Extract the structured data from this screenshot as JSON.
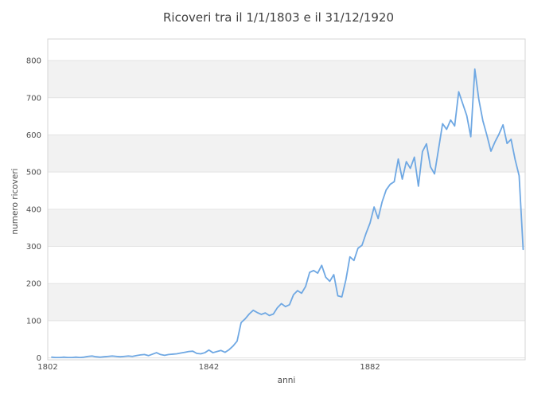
{
  "chart_data": {
    "type": "line",
    "title": "Ricoveri tra il 1/1/1803 e il 31/12/1920",
    "xlabel": "anni",
    "ylabel": "numero ricoveri",
    "x_start": 1803,
    "x_end": 1920,
    "x_step": 1,
    "series": [
      {
        "name": "ricoveri",
        "values": [
          2,
          1,
          1,
          2,
          1,
          1,
          2,
          1,
          2,
          4,
          5,
          3,
          2,
          3,
          4,
          5,
          4,
          3,
          4,
          5,
          4,
          6,
          8,
          9,
          6,
          10,
          14,
          9,
          7,
          9,
          10,
          11,
          13,
          15,
          17,
          18,
          12,
          11,
          14,
          21,
          14,
          17,
          20,
          15,
          22,
          32,
          45,
          95,
          105,
          118,
          128,
          122,
          117,
          121,
          114,
          118,
          135,
          146,
          138,
          143,
          170,
          181,
          174,
          192,
          230,
          235,
          228,
          249,
          217,
          206,
          224,
          167,
          164,
          210,
          272,
          262,
          295,
          303,
          335,
          363,
          406,
          375,
          420,
          452,
          467,
          474,
          535,
          481,
          528,
          510,
          540,
          462,
          555,
          576,
          514,
          495,
          562,
          630,
          615,
          640,
          624,
          716,
          684,
          652,
          595,
          777,
          695,
          638,
          599,
          556,
          581,
          602,
          627,
          577,
          588,
          534,
          490,
          292
        ]
      }
    ],
    "x_ticks": [
      1802,
      1842,
      1882
    ],
    "y_ticks": [
      0,
      100,
      200,
      300,
      400,
      500,
      600,
      700,
      800
    ],
    "xlim": [
      1802,
      1920.5
    ],
    "ylim": [
      0,
      858
    ],
    "grid": "horizontal",
    "alternating_bands": [
      [
        100,
        200
      ],
      [
        300,
        400
      ],
      [
        500,
        600
      ],
      [
        700,
        800
      ]
    ],
    "legend": "none",
    "colors": {
      "line": "#6fa8e3",
      "band": "#f2f2f2",
      "grid": "#e3e3e3",
      "border": "#d6d6d6",
      "title_text": "#3f3f3f",
      "tick_text": "#4d4d4d"
    }
  }
}
